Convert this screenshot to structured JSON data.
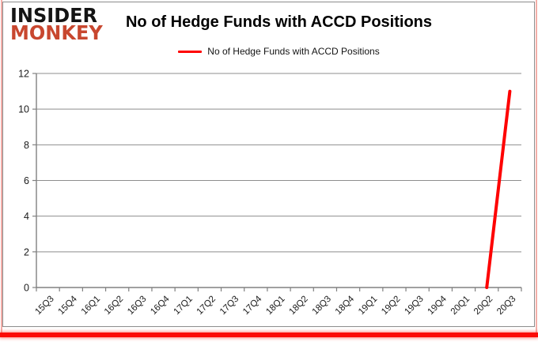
{
  "logo": {
    "line1": "INSIDER",
    "line2": "MONKEY",
    "line2_color": "#c8472f"
  },
  "header": {
    "title": "No of Hedge Funds with ACCD Positions"
  },
  "legend": {
    "label": "No of Hedge Funds with ACCD Positions",
    "line_color": "#fe0000"
  },
  "chart_data": {
    "type": "line",
    "title": "No of Hedge Funds with ACCD Positions",
    "categories": [
      "15Q3",
      "15Q4",
      "16Q1",
      "16Q2",
      "16Q3",
      "16Q4",
      "17Q1",
      "17Q2",
      "17Q3",
      "17Q4",
      "18Q1",
      "18Q2",
      "18Q3",
      "18Q4",
      "19Q1",
      "19Q2",
      "19Q3",
      "19Q4",
      "20Q1",
      "20Q2",
      "20Q3"
    ],
    "series": [
      {
        "name": "No of Hedge Funds with ACCD Positions",
        "color": "#fe0000",
        "values": [
          null,
          null,
          null,
          null,
          null,
          null,
          null,
          null,
          null,
          null,
          null,
          null,
          null,
          null,
          null,
          null,
          null,
          null,
          null,
          0,
          11
        ]
      }
    ],
    "xlabel": "",
    "ylabel": "",
    "ylim": [
      0,
      12
    ],
    "yticks": [
      0,
      2,
      4,
      6,
      8,
      10,
      12
    ],
    "grid": true,
    "legend_position": "top-center",
    "x_label_rotation": -45
  },
  "colors": {
    "gridline": "#8e8e8e",
    "axis": "#808080",
    "tick_label": "#1a1a1a",
    "chart_border": "#8c8c8c",
    "bottom_bar": "#fb0b07",
    "side_edge": "#f3aea8"
  }
}
